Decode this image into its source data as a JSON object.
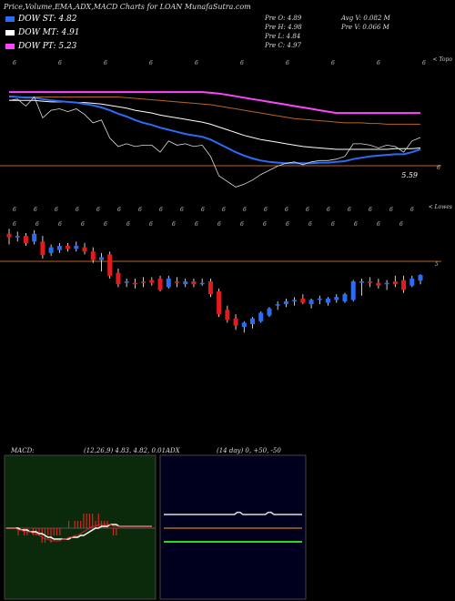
{
  "header": {
    "title": "Price,Volume,EMA,ADX,MACD Charts for LOAN MunafaSutra.com"
  },
  "legend": [
    {
      "label": "DOW ST: 4.82",
      "color": "#2a6df4"
    },
    {
      "label": "DOW MT: 4.91",
      "color": "#ffffff"
    },
    {
      "label": "DOW PT: 5.23",
      "color": "#ff44ff"
    }
  ],
  "stats": {
    "open": "Pre O: 4.89",
    "high": "Pre H: 4.98",
    "low": "Pre L: 4.84",
    "close": "Pre C: 4.97",
    "avg_volume": "Avg V: 0.082 M",
    "prev_volume": "Pre V: 0.066 M"
  },
  "ema_panel": {
    "top_label": "< Topo",
    "price_label": "5.59",
    "level_tag": "6",
    "level_line_color": "#b8651f",
    "marks_top": [
      "6",
      "6",
      "6",
      "6",
      "6",
      "6",
      "6",
      "6",
      "6",
      "6"
    ],
    "marks_bottom": [
      "6",
      "6",
      "6",
      "6",
      "6",
      "6",
      "6",
      "6",
      "6",
      "6",
      "6",
      "6",
      "6",
      "6",
      "6",
      "6",
      "6",
      "6",
      "6",
      "6"
    ]
  },
  "candle_panel": {
    "top_label": "< Lowes",
    "level_tag": "5",
    "marks_top": [
      "6",
      "6",
      "6",
      "6",
      "6",
      "6",
      "6",
      "6",
      "6",
      "6",
      "6",
      "6",
      "6",
      "6",
      "6",
      "6",
      "6",
      "6"
    ],
    "up_color": "#2a6df4",
    "down_color": "#e21c1c"
  },
  "macd": {
    "label": "MACD:",
    "values": "(12,26,9) 4.83, 4.82, 0.01"
  },
  "adx": {
    "label": "ADX",
    "values": "(14 day) 0, +50, -50"
  },
  "chart_data": {
    "type": "candlestick",
    "candles": [
      [
        5.55,
        5.62,
        5.4,
        5.5
      ],
      [
        5.5,
        5.58,
        5.44,
        5.52
      ],
      [
        5.52,
        5.56,
        5.38,
        5.42
      ],
      [
        5.44,
        5.6,
        5.4,
        5.55
      ],
      [
        5.44,
        5.52,
        5.2,
        5.25
      ],
      [
        5.28,
        5.4,
        5.24,
        5.36
      ],
      [
        5.32,
        5.42,
        5.28,
        5.38
      ],
      [
        5.38,
        5.42,
        5.3,
        5.34
      ],
      [
        5.34,
        5.44,
        5.3,
        5.38
      ],
      [
        5.36,
        5.42,
        5.26,
        5.3
      ],
      [
        5.3,
        5.36,
        5.14,
        5.18
      ],
      [
        5.18,
        5.28,
        5.02,
        5.22
      ],
      [
        5.26,
        5.3,
        4.92,
        4.96
      ],
      [
        5.0,
        5.06,
        4.8,
        4.84
      ],
      [
        4.86,
        4.92,
        4.8,
        4.88
      ],
      [
        4.86,
        4.92,
        4.78,
        4.84
      ],
      [
        4.88,
        4.94,
        4.8,
        4.86
      ],
      [
        4.9,
        4.94,
        4.82,
        4.86
      ],
      [
        4.92,
        4.96,
        4.74,
        4.76
      ],
      [
        4.8,
        4.96,
        4.78,
        4.92
      ],
      [
        4.88,
        4.94,
        4.8,
        4.86
      ],
      [
        4.84,
        4.92,
        4.8,
        4.88
      ],
      [
        4.88,
        4.92,
        4.8,
        4.84
      ],
      [
        4.86,
        4.92,
        4.82,
        4.86
      ],
      [
        4.88,
        4.92,
        4.66,
        4.7
      ],
      [
        4.74,
        4.78,
        4.38,
        4.42
      ],
      [
        4.48,
        4.54,
        4.3,
        4.34
      ],
      [
        4.36,
        4.42,
        4.2,
        4.26
      ],
      [
        4.24,
        4.32,
        4.16,
        4.3
      ],
      [
        4.28,
        4.38,
        4.22,
        4.36
      ],
      [
        4.32,
        4.46,
        4.3,
        4.44
      ],
      [
        4.4,
        4.52,
        4.38,
        4.5
      ],
      [
        4.54,
        4.6,
        4.48,
        4.56
      ],
      [
        4.56,
        4.64,
        4.52,
        4.6
      ],
      [
        4.6,
        4.66,
        4.54,
        4.62
      ],
      [
        4.64,
        4.7,
        4.56,
        4.58
      ],
      [
        4.56,
        4.64,
        4.5,
        4.62
      ],
      [
        4.62,
        4.68,
        4.56,
        4.64
      ],
      [
        4.58,
        4.66,
        4.54,
        4.64
      ],
      [
        4.62,
        4.7,
        4.58,
        4.66
      ],
      [
        4.6,
        4.72,
        4.58,
        4.7
      ],
      [
        4.62,
        4.9,
        4.6,
        4.88
      ],
      [
        4.86,
        4.92,
        4.68,
        4.88
      ],
      [
        4.88,
        4.94,
        4.8,
        4.86
      ],
      [
        4.86,
        4.92,
        4.78,
        4.82
      ],
      [
        4.84,
        4.9,
        4.76,
        4.86
      ],
      [
        4.88,
        4.96,
        4.8,
        4.84
      ],
      [
        4.9,
        4.96,
        4.72,
        4.76
      ],
      [
        4.82,
        4.96,
        4.8,
        4.92
      ],
      [
        4.89,
        4.98,
        4.84,
        4.97
      ]
    ],
    "ema_fast": [
      5.56,
      5.55,
      5.54,
      5.54,
      5.52,
      5.5,
      5.49,
      5.48,
      5.47,
      5.45,
      5.43,
      5.4,
      5.36,
      5.31,
      5.27,
      5.22,
      5.18,
      5.15,
      5.11,
      5.08,
      5.05,
      5.02,
      5.0,
      4.98,
      4.94,
      4.88,
      4.82,
      4.76,
      4.71,
      4.67,
      4.64,
      4.62,
      4.61,
      4.6,
      4.6,
      4.6,
      4.6,
      4.61,
      4.61,
      4.62,
      4.63,
      4.66,
      4.68,
      4.7,
      4.71,
      4.72,
      4.73,
      4.73,
      4.76,
      4.8
    ],
    "ema_mid": [
      5.5,
      5.5,
      5.5,
      5.5,
      5.49,
      5.48,
      5.48,
      5.48,
      5.47,
      5.47,
      5.46,
      5.45,
      5.43,
      5.41,
      5.39,
      5.36,
      5.34,
      5.32,
      5.29,
      5.27,
      5.25,
      5.23,
      5.21,
      5.19,
      5.16,
      5.12,
      5.08,
      5.04,
      5.0,
      4.97,
      4.94,
      4.92,
      4.9,
      4.88,
      4.86,
      4.84,
      4.83,
      4.82,
      4.81,
      4.8,
      4.8,
      4.8,
      4.8,
      4.8,
      4.8,
      4.8,
      4.81,
      4.81,
      4.81,
      4.82
    ],
    "ema_slow": [
      5.55,
      5.55,
      5.55,
      5.55,
      5.55,
      5.55,
      5.55,
      5.55,
      5.55,
      5.55,
      5.55,
      5.55,
      5.55,
      5.55,
      5.54,
      5.53,
      5.52,
      5.51,
      5.5,
      5.49,
      5.48,
      5.47,
      5.46,
      5.45,
      5.44,
      5.42,
      5.4,
      5.38,
      5.36,
      5.34,
      5.32,
      5.3,
      5.28,
      5.26,
      5.24,
      5.23,
      5.22,
      5.21,
      5.2,
      5.19,
      5.18,
      5.18,
      5.18,
      5.17,
      5.17,
      5.16,
      5.16,
      5.16,
      5.16,
      5.16
    ],
    "dma_slow": [
      5.62,
      5.62,
      5.62,
      5.62,
      5.62,
      5.62,
      5.62,
      5.62,
      5.62,
      5.62,
      5.62,
      5.62,
      5.62,
      5.62,
      5.62,
      5.62,
      5.62,
      5.62,
      5.62,
      5.62,
      5.62,
      5.62,
      5.62,
      5.62,
      5.61,
      5.6,
      5.58,
      5.56,
      5.54,
      5.52,
      5.5,
      5.48,
      5.46,
      5.44,
      5.42,
      5.4,
      5.38,
      5.36,
      5.34,
      5.32,
      5.32,
      5.32,
      5.32,
      5.32,
      5.32,
      5.32,
      5.32,
      5.32,
      5.32,
      5.32
    ],
    "macd_line": [
      0,
      0,
      0,
      0,
      -0.01,
      -0.01,
      -0.02,
      -0.02,
      -0.02,
      -0.03,
      -0.03,
      -0.04,
      -0.05,
      -0.06,
      -0.06,
      -0.07,
      -0.07,
      -0.07,
      -0.07,
      -0.06,
      -0.06,
      -0.05,
      -0.05,
      -0.04,
      -0.04,
      -0.03,
      -0.02,
      -0.01,
      0.0,
      0.01,
      0.01,
      0.02,
      0.02,
      0.02,
      0.02,
      0.02,
      0.01,
      0.01,
      0.01,
      0.01,
      0.01,
      0.01,
      0.01,
      0.01,
      0.01,
      0.01,
      0.01,
      0.01,
      0.01,
      0.01
    ],
    "macd_signal": [
      0,
      0,
      0,
      0,
      0,
      -0.01,
      -0.01,
      -0.01,
      -0.02,
      -0.02,
      -0.02,
      -0.03,
      -0.03,
      -0.04,
      -0.05,
      -0.05,
      -0.06,
      -0.06,
      -0.06,
      -0.06,
      -0.06,
      -0.06,
      -0.05,
      -0.05,
      -0.05,
      -0.04,
      -0.04,
      -0.03,
      -0.02,
      -0.01,
      0,
      0,
      0.01,
      0.01,
      0.01,
      0.02,
      0.02,
      0.02,
      0.01,
      0.01,
      0.01,
      0.01,
      0.01,
      0.01,
      0.01,
      0.01,
      0.01,
      0.01,
      0.01,
      0.01
    ],
    "adx": [
      0,
      0,
      0,
      0,
      0,
      0,
      0,
      0,
      0,
      0,
      0,
      0,
      0,
      0,
      0,
      0,
      0,
      0,
      0,
      0,
      0,
      0,
      0,
      0,
      0,
      0,
      0,
      0,
      0,
      0,
      0,
      0,
      0,
      0,
      0,
      0,
      0,
      0,
      0,
      0,
      0,
      0,
      0,
      0,
      0,
      0,
      0,
      0,
      0,
      0
    ],
    "di_plus": [
      50,
      50,
      50,
      50,
      50,
      50,
      50,
      50,
      50,
      50,
      50,
      50,
      50,
      50,
      50,
      50,
      50,
      50,
      50,
      50,
      50,
      50,
      50,
      50,
      50,
      50,
      58,
      58,
      50,
      50,
      50,
      50,
      50,
      50,
      50,
      50,
      50,
      58,
      58,
      50,
      50,
      50,
      50,
      50,
      50,
      50,
      50,
      50,
      50,
      50
    ],
    "di_minus": [
      -50,
      -50,
      -50,
      -50,
      -50,
      -50,
      -50,
      -50,
      -50,
      -50,
      -50,
      -50,
      -50,
      -50,
      -50,
      -50,
      -50,
      -50,
      -50,
      -50,
      -50,
      -50,
      -50,
      -50,
      -50,
      -50,
      -50,
      -50,
      -50,
      -50,
      -50,
      -50,
      -50,
      -50,
      -50,
      -50,
      -50,
      -50,
      -50,
      -50,
      -50,
      -50,
      -50,
      -50,
      -50,
      -50,
      -50,
      -50,
      -50,
      -50
    ]
  }
}
